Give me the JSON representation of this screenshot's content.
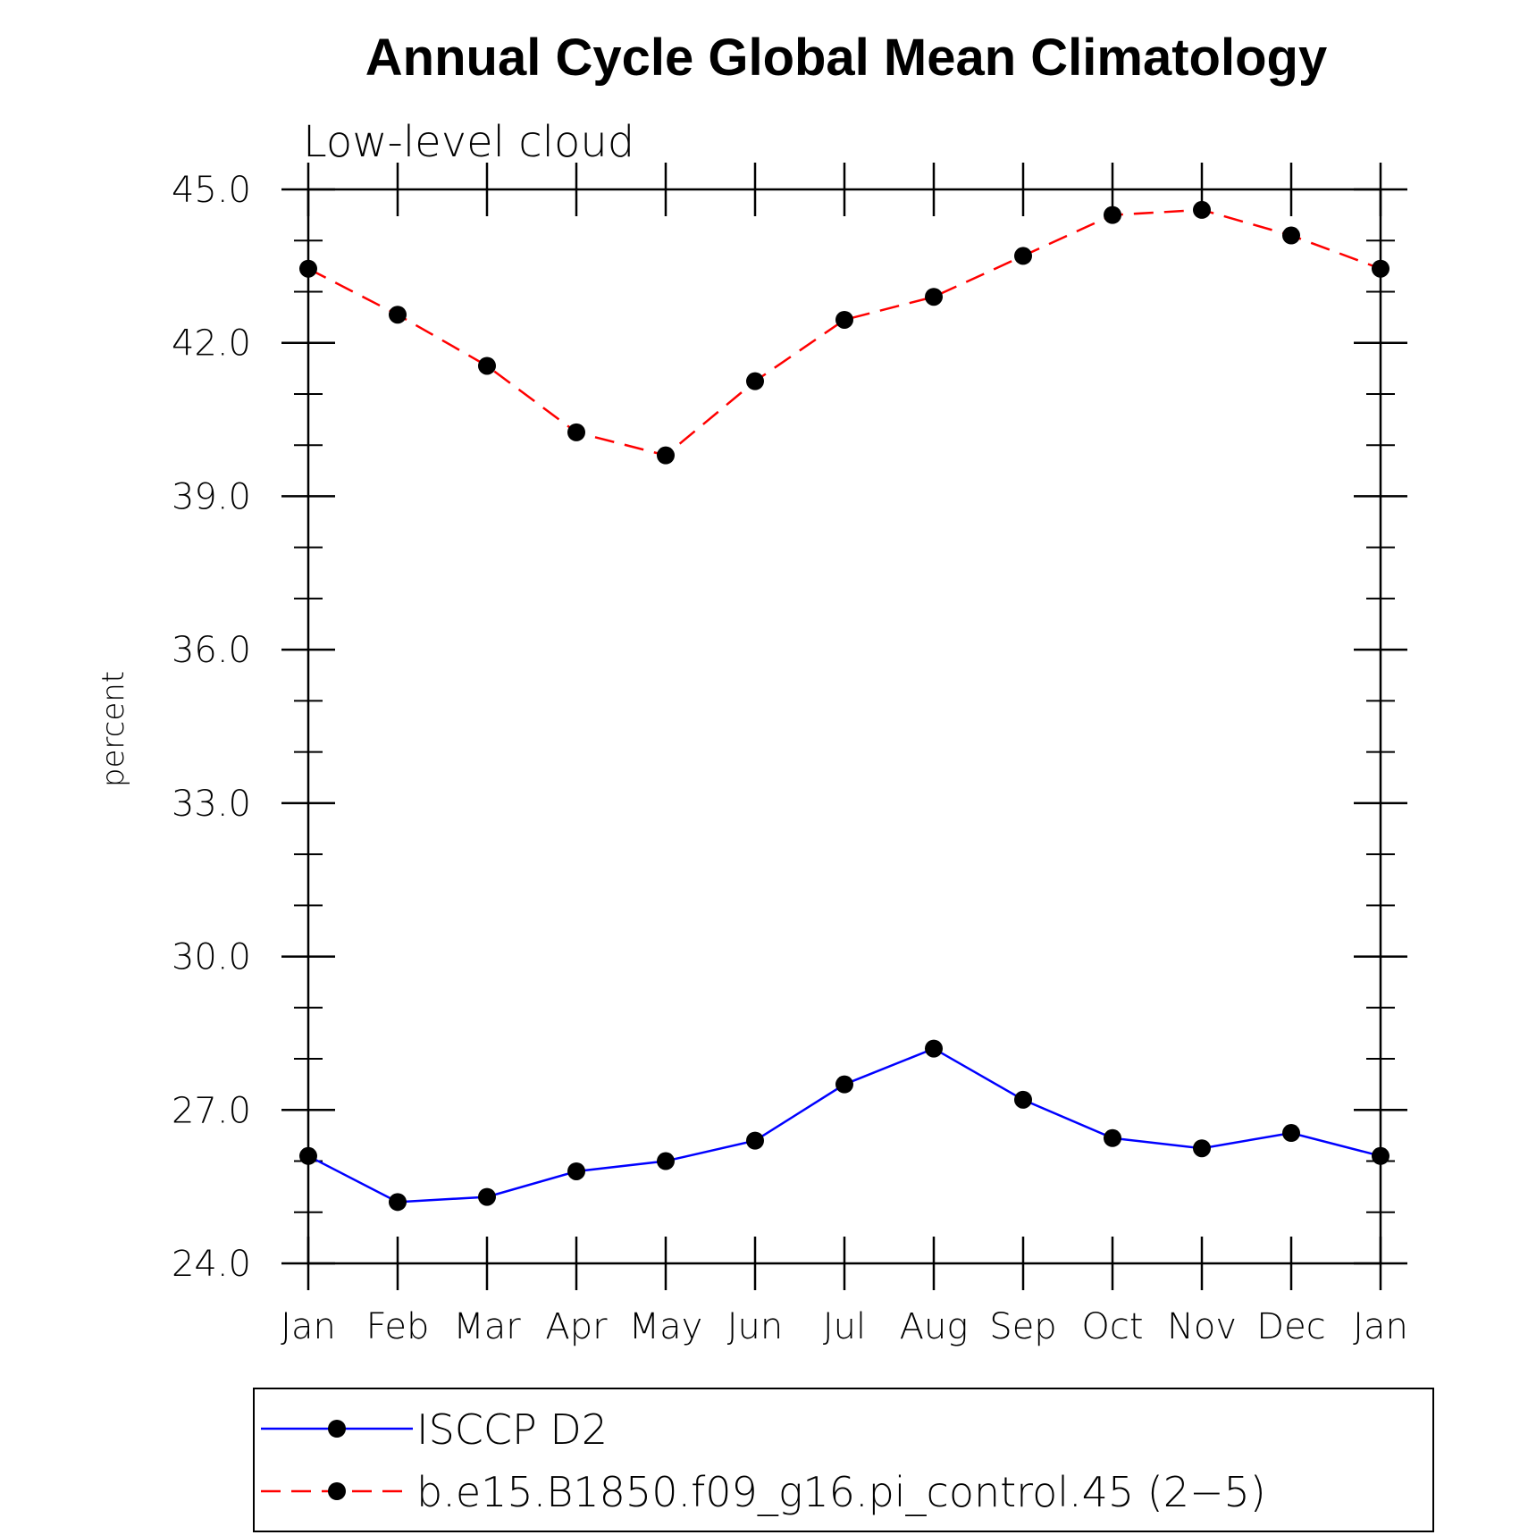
{
  "chart_data": {
    "type": "line",
    "title": "Annual Cycle Global Mean Climatology",
    "subtitle": "Low-level cloud",
    "xlabel": "",
    "ylabel": "percent",
    "ylim": [
      24,
      45
    ],
    "yticks": [
      "24.0",
      "27.0",
      "30.0",
      "33.0",
      "36.0",
      "39.0",
      "42.0",
      "45.0"
    ],
    "ytick_values": [
      24,
      27,
      30,
      33,
      36,
      39,
      42,
      45
    ],
    "categories": [
      "Jan",
      "Feb",
      "Mar",
      "Apr",
      "May",
      "Jun",
      "Jul",
      "Aug",
      "Sep",
      "Oct",
      "Nov",
      "Dec",
      "Jan"
    ],
    "series": [
      {
        "name": "ISCCP D2",
        "color": "#0000ff",
        "dash": "solid",
        "values": [
          26.1,
          25.2,
          25.3,
          25.8,
          26.0,
          26.4,
          27.5,
          28.2,
          27.2,
          26.45,
          26.25,
          26.55,
          26.1
        ]
      },
      {
        "name": "b.e15.B1850.f09_g16.pi_control.45 (2−5)",
        "color": "#ff0000",
        "dash": "dashed",
        "values": [
          43.45,
          42.55,
          41.55,
          40.25,
          39.8,
          41.25,
          42.45,
          42.9,
          43.7,
          44.5,
          44.6,
          44.1,
          43.45
        ]
      }
    ],
    "legend_position": "bottom",
    "grid": false
  }
}
